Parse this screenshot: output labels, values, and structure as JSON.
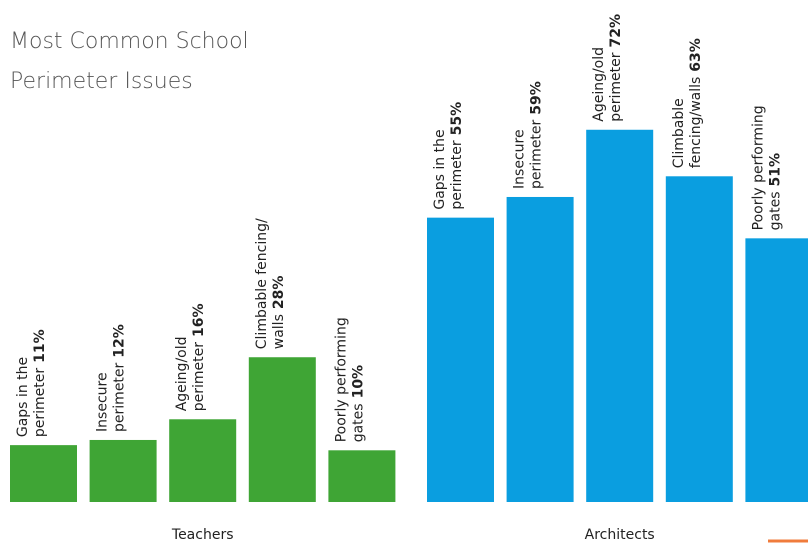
{
  "chart_data": {
    "type": "bar",
    "title": "Most Common School Perimeter Issues",
    "series": [
      {
        "name": "Teachers",
        "color": "#3fa535",
        "categories": [
          [
            "Gaps in the",
            "perimeter"
          ],
          [
            "Insecure",
            "perimeter"
          ],
          [
            "Ageing/old",
            "perimeter"
          ],
          [
            "Climbable fencing/",
            "walls"
          ],
          [
            "Poorly performing",
            "gates"
          ]
        ],
        "values": [
          11,
          12,
          16,
          28,
          10
        ],
        "value_labels": [
          "11%",
          "12%",
          "16%",
          "28%",
          "10%"
        ]
      },
      {
        "name": "Architects",
        "color": "#0a9ee0",
        "categories": [
          [
            "Gaps in the",
            "perimeter"
          ],
          [
            "Insecure",
            "perimeter"
          ],
          [
            "Ageing/old",
            "perimeter"
          ],
          [
            "Climbable",
            "fencing/walls"
          ],
          [
            "Poorly performing",
            "gates"
          ]
        ],
        "values": [
          55,
          59,
          72,
          63,
          51
        ],
        "value_labels": [
          "55%",
          "59%",
          "72%",
          "63%",
          "51%"
        ]
      }
    ]
  }
}
